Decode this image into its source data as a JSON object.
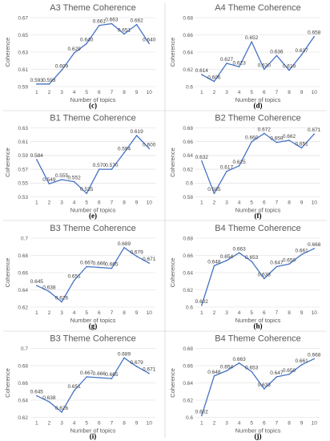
{
  "style": {
    "line_color": "#4472c4"
  },
  "chart_data": [
    {
      "type": "line",
      "title": "A3 Theme Coherence",
      "caption": "(c)",
      "xlabel": "Number of topics",
      "ylabel": "Coherence",
      "categories": [
        1,
        2,
        3,
        4,
        5,
        6,
        7,
        8,
        9,
        10
      ],
      "values": [
        0.593,
        0.593,
        0.609,
        0.629,
        0.64,
        0.661,
        0.663,
        0.651,
        0.662,
        0.64
      ],
      "labels": [
        "0.593",
        "0.593",
        "0.609",
        "0.629",
        "0.640",
        "0.661",
        "0.663",
        "0.651",
        "0.662",
        "0.640"
      ],
      "ylim": [
        0.59,
        0.67
      ],
      "yticks": [
        "0.59",
        "0.61",
        "0.63",
        "0.65",
        "0.67"
      ],
      "ystep": 0.02
    },
    {
      "type": "line",
      "title": "A4 Theme Coherence",
      "caption": "(d)",
      "xlabel": "Number of topics",
      "ylabel": "Coherence",
      "categories": [
        1,
        2,
        3,
        4,
        5,
        6,
        7,
        8,
        9,
        10
      ],
      "values": [
        0.614,
        0.606,
        0.627,
        0.623,
        0.652,
        0.62,
        0.636,
        0.619,
        0.637,
        0.658
      ],
      "labels": [
        "0.614",
        "0.606",
        "0.627",
        "0.623",
        "0.652",
        "0.620",
        "0.636",
        "0.619",
        "0.637",
        "0.658"
      ],
      "ylim": [
        0.6,
        0.68
      ],
      "yticks": [
        "0.6",
        "0.62",
        "0.64",
        "0.66",
        "0.68"
      ],
      "ystep": 0.02
    },
    {
      "type": "line",
      "title": "B1 Theme Coherence",
      "caption": "(e)",
      "xlabel": "Number of topics",
      "ylabel": "Coherence",
      "categories": [
        1,
        2,
        3,
        4,
        5,
        6,
        7,
        8,
        9,
        10
      ],
      "values": [
        0.584,
        0.549,
        0.555,
        0.552,
        0.535,
        0.57,
        0.57,
        0.594,
        0.619,
        0.6
      ],
      "labels": [
        "0.584",
        "0.549",
        "0.555",
        "0.552",
        "0.535",
        "0.570",
        "0.570",
        "0.594",
        "0.619",
        "0.600"
      ],
      "ylim": [
        0.53,
        0.63
      ],
      "yticks": [
        "0.53",
        "0.55",
        "0.57",
        "0.59",
        "0.61",
        "0.63"
      ],
      "ystep": 0.02
    },
    {
      "type": "line",
      "title": "B2 Theme Coherence",
      "caption": "(f)",
      "xlabel": "Number of topics",
      "ylabel": "Coherence",
      "categories": [
        1,
        2,
        3,
        4,
        5,
        6,
        7,
        8,
        9,
        10
      ],
      "values": [
        0.632,
        0.585,
        0.617,
        0.625,
        0.66,
        0.672,
        0.659,
        0.662,
        0.651,
        0.671
      ],
      "labels": [
        "0.632",
        "0.585",
        "0.617",
        "0.625",
        "0.660",
        "0.672",
        "0.659",
        "0.662",
        "0.651",
        "0.671"
      ],
      "ylim": [
        0.58,
        0.68
      ],
      "yticks": [
        "0.58",
        "0.6",
        "0.62",
        "0.64",
        "0.66",
        "0.68"
      ],
      "ystep": 0.02
    },
    {
      "type": "line",
      "title": "B3 Theme Coherence",
      "caption": "(g)",
      "xlabel": "Number of topics",
      "ylabel": "Coherence",
      "categories": [
        1,
        2,
        3,
        4,
        5,
        6,
        7,
        8,
        9,
        10
      ],
      "values": [
        0.645,
        0.638,
        0.626,
        0.651,
        0.667,
        0.666,
        0.665,
        0.689,
        0.679,
        0.671
      ],
      "labels": [
        "0.645",
        "0.638",
        "0.626",
        "0.651",
        "0.667",
        "0.666",
        "0.665",
        "0.689",
        "0.679",
        "0.671"
      ],
      "ylim": [
        0.62,
        0.7
      ],
      "yticks": [
        "0.62",
        "0.64",
        "0.66",
        "0.68",
        "0.7"
      ],
      "ystep": 0.02
    },
    {
      "type": "line",
      "title": "B4 Theme Coherence",
      "caption": "(h)",
      "xlabel": "Number of topics",
      "ylabel": "Coherence",
      "categories": [
        1,
        2,
        3,
        4,
        5,
        6,
        7,
        8,
        9,
        10
      ],
      "values": [
        0.602,
        0.648,
        0.654,
        0.663,
        0.653,
        0.633,
        0.647,
        0.65,
        0.661,
        0.668
      ],
      "labels": [
        "0.602",
        "0.648",
        "0.654",
        "0.663",
        "0.653",
        "0.633",
        "0.647",
        "0.650",
        "0.661",
        "0.668"
      ],
      "ylim": [
        0.6,
        0.68
      ],
      "yticks": [
        "0.6",
        "0.62",
        "0.64",
        "0.66",
        "0.68"
      ],
      "ystep": 0.02
    },
    {
      "type": "line",
      "title": "B3 Theme Coherence",
      "caption": "(i)",
      "xlabel": "Number of topics",
      "ylabel": "Coherence",
      "categories": [
        1,
        2,
        3,
        4,
        5,
        6,
        7,
        8,
        9,
        10
      ],
      "values": [
        0.645,
        0.638,
        0.626,
        0.651,
        0.667,
        0.666,
        0.665,
        0.689,
        0.679,
        0.671
      ],
      "labels": [
        "0.645",
        "0.638",
        "0.626",
        "0.651",
        "0.667",
        "0.666",
        "0.665",
        "0.689",
        "0.679",
        "0.671"
      ],
      "ylim": [
        0.62,
        0.7
      ],
      "yticks": [
        "0.62",
        "0.64",
        "0.66",
        "0.68",
        "0.7"
      ],
      "ystep": 0.02
    },
    {
      "type": "line",
      "title": "B4 Theme Coherence",
      "caption": "(j)",
      "xlabel": "Number of topics",
      "ylabel": "Coherence",
      "categories": [
        1,
        2,
        3,
        4,
        5,
        6,
        7,
        8,
        9,
        10
      ],
      "values": [
        0.602,
        0.648,
        0.654,
        0.663,
        0.653,
        0.633,
        0.647,
        0.65,
        0.661,
        0.668
      ],
      "labels": [
        "0.602",
        "0.648",
        "0.654",
        "0.663",
        "0.653",
        "0.633",
        "0.647",
        "0.650",
        "0.661",
        "0.668"
      ],
      "ylim": [
        0.6,
        0.68
      ],
      "yticks": [
        "0.6",
        "0.62",
        "0.64",
        "0.66",
        "0.68"
      ],
      "ystep": 0.02
    }
  ]
}
